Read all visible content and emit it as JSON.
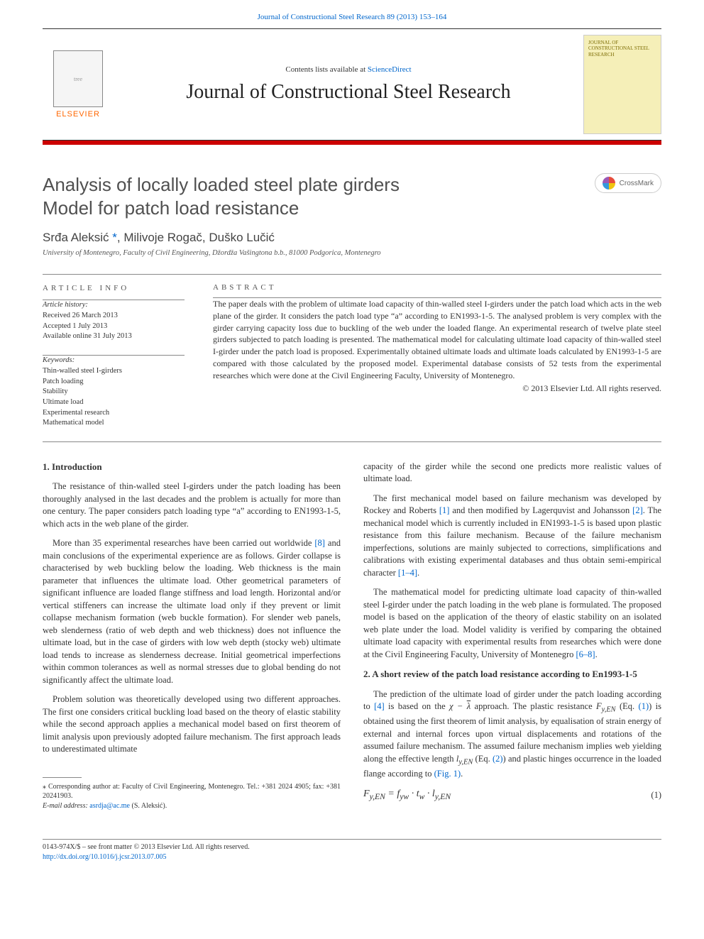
{
  "header": {
    "citation_prefix": "Journal of Constructional Steel Research 89 (2013) 153–164",
    "contents_line_prefix": "Contents lists available at ",
    "contents_line_link": "ScienceDirect",
    "journal_title": "Journal of Constructional Steel Research",
    "elsevier": "ELSEVIER",
    "cover_caption": "JOURNAL OF CONSTRUCTIONAL STEEL RESEARCH"
  },
  "crossmark_label": "CrossMark",
  "article": {
    "title_line1": "Analysis of locally loaded steel plate girders",
    "title_line2": "Model for patch load resistance",
    "authors_html": "Srđa Aleksić",
    "authors_rest": ", Milivoje Rogač, Duško Lučić",
    "corr_mark": "*",
    "affiliation": "University of Montenegro, Faculty of Civil Engineering, Džordža Vašingtona b.b., 81000 Podgorica, Montenegro"
  },
  "info": {
    "heading": "article info",
    "history_label": "Article history:",
    "received": "Received 26 March 2013",
    "accepted": "Accepted 1 July 2013",
    "online": "Available online 31 July 2013",
    "keywords_label": "Keywords:",
    "keywords": [
      "Thin-walled steel I-girders",
      "Patch loading",
      "Stability",
      "Ultimate load",
      "Experimental research",
      "Mathematical model"
    ]
  },
  "abstract": {
    "heading": "abstract",
    "body": "The paper deals with the problem of ultimate load capacity of thin-walled steel I-girders under the patch load which acts in the web plane of the girder. It considers the patch load type “a” according to EN1993-1-5. The analysed problem is very complex with the girder carrying capacity loss due to buckling of the web under the loaded flange. An experimental research of twelve plate steel girders subjected to patch loading is presented. The mathematical model for calculating ultimate load capacity of thin-walled steel I-girder under the patch load is proposed. Experimentally obtained ultimate loads and ultimate loads calculated by EN1993-1-5 are compared with those calculated by the proposed model. Experimental database consists of 52 tests from the experimental researches which were done at the Civil Engineering Faculty, University of Montenegro.",
    "copyright": "© 2013 Elsevier Ltd. All rights reserved."
  },
  "sections": {
    "s1_heading": "1. Introduction",
    "s1_p1": "The resistance of thin-walled steel I-girders under the patch loading has been thoroughly analysed in the last decades and the problem is actually for more than one century. The paper considers patch loading type “a” according to EN1993-1-5, which acts in the web plane of the girder.",
    "s1_p2a": "More than 35 experimental researches have been carried out worldwide ",
    "s1_p2_ref": "[8]",
    "s1_p2b": " and main conclusions of the experimental experience are as follows. Girder collapse is characterised by web buckling below the loading. Web thickness is the main parameter that influences the ultimate load. Other geometrical parameters of significant influence are loaded flange stiffness and load length. Horizontal and/or vertical stiffeners can increase the ultimate load only if they prevent or limit collapse mechanism formation (web buckle formation). For slender web panels, web slenderness (ratio of web depth and web thickness) does not influence the ultimate load, but in the case of girders with low web depth (stocky web) ultimate load tends to increase as slenderness decrease. Initial geometrical imperfections within common tolerances as well as normal stresses due to global bending do not significantly affect the ultimate load.",
    "s1_p3": "Problem solution was theoretically developed using two different approaches. The first one considers critical buckling load based on the theory of elastic stability while the second approach applies a mechanical model based on first theorem of limit analysis upon previously adopted failure mechanism. The first approach leads to underestimated ultimate",
    "col2_cont": "capacity of the girder while the second one predicts more realistic values of ultimate load.",
    "col2_p2a": "The first mechanical model based on failure mechanism was developed by Rockey and Roberts ",
    "col2_p2_ref1": "[1]",
    "col2_p2b": " and then modified by Lagerquvist and Johansson ",
    "col2_p2_ref2": "[2]",
    "col2_p2c": ". The mechanical model which is currently included in EN1993-1-5 is based upon plastic resistance from this failure mechanism. Because of the failure mechanism imperfections, solutions are mainly subjected to corrections, simplifications and calibrations with existing experimental databases and thus obtain semi-empirical character ",
    "col2_p2_ref3": "[1–4]",
    "col2_p2d": ".",
    "col2_p3a": "The mathematical model for predicting ultimate load capacity of thin-walled steel I-girder under the patch loading in the web plane is formulated. The proposed model is based on the application of the theory of elastic stability on an isolated web plate under the load. Model validity is verified by comparing the obtained ultimate load capacity with experimental results from researches which were done at the Civil Engineering Faculty, University of Montenegro ",
    "col2_p3_ref": "[6–8]",
    "col2_p3b": ".",
    "s2_heading": "2. A short review of the patch load resistance according to En1993-1-5",
    "s2_p1a": "The prediction of the ultimate load of girder under the patch loading according to ",
    "s2_ref4": "[4]",
    "s2_p1b_plain1": " is based on the ",
    "s2_chi": "χ − ",
    "s2_lambda": "λ",
    "s2_p1b_plain2": " approach. The plastic resistance ",
    "s2_FyEN": "F",
    "s2_FyEN_sub": "y,EN",
    "s2_p1c": " (Eq. ",
    "s2_eq1ref": "(1)",
    "s2_p1d": ") is obtained using the first theorem of limit analysis, by equalisation of strain energy of external and internal forces upon virtual displacements and rotations of the assumed failure mechanism. The assumed failure mechanism implies web yielding along the effective length ",
    "s2_lyEN": "l",
    "s2_lyEN_sub": "y,EN",
    "s2_p1e": " (Eq. ",
    "s2_eq2ref": "(2)",
    "s2_p1f": ") and plastic hinges occurrence in the loaded flange according to ",
    "s2_fig1ref": "(Fig. 1)",
    "s2_p1g": ".",
    "eq1_body": "F_{y,EN} = f_{yw} · t_w · l_{y,EN}",
    "eq1_num": "(1)"
  },
  "footnotes": {
    "corr": "⁎ Corresponding author at: Faculty of Civil Engineering, Montenegro. Tel.: +381 2024 4905; fax: +381 20241903.",
    "email_label": "E-mail address: ",
    "email": "asrdja@ac.me",
    "email_tail": " (S. Aleksić)."
  },
  "bottom": {
    "line1": "0143-974X/$ – see front matter © 2013 Elsevier Ltd. All rights reserved.",
    "doi": "http://dx.doi.org/10.1016/j.jcsr.2013.07.005"
  }
}
